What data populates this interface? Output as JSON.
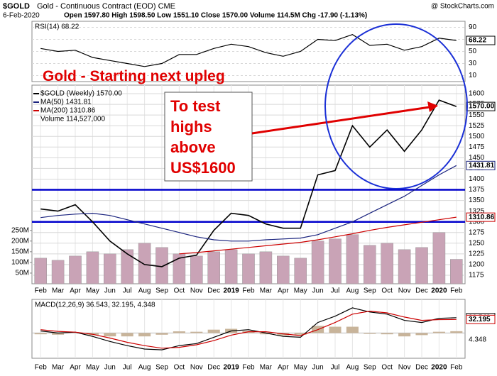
{
  "header": {
    "symbol": "$GOLD",
    "name": "Gold - Continuous Contract (EOD) CME",
    "date": "6-Feb-2020",
    "quote": "Open 1597.80  High 1598.50  Low 1551.10  Close 1570.00  Volume 114.5M  Chg -17.90 (-1.13%)",
    "credit": "@ StockCharts.com"
  },
  "chart_data": [
    {
      "type": "line",
      "title": "RSI(14) 68.22",
      "ylim": [
        0,
        100
      ],
      "yticks": [
        10,
        30,
        50,
        70,
        90
      ],
      "grid": true,
      "series": [
        {
          "color": "#000000",
          "tag": "68.22",
          "values": [
            55,
            50,
            52,
            40,
            35,
            30,
            25,
            30,
            45,
            45,
            55,
            62,
            58,
            48,
            42,
            50,
            70,
            68,
            78,
            60,
            62,
            52,
            58,
            72,
            68.22
          ]
        }
      ]
    },
    {
      "type": "line",
      "annotations": [
        "Gold -  Starting next upleg"
      ],
      "callout": [
        "To test",
        "highs",
        "above",
        "US$1600"
      ],
      "categories": [
        "Feb",
        "Mar",
        "Apr",
        "May",
        "Jun",
        "Jul",
        "Aug",
        "Sep",
        "Oct",
        "Nov",
        "Dec",
        "2019",
        "Feb",
        "Mar",
        "Apr",
        "May",
        "Jun",
        "Jul",
        "Aug",
        "Sep",
        "Oct",
        "Nov",
        "Dec",
        "2020",
        "Feb"
      ],
      "ylim": [
        1155,
        1620
      ],
      "yticks": [
        1175,
        1200,
        1225,
        1250,
        1275,
        1300,
        1325,
        1350,
        1375,
        1400,
        1425,
        1450,
        1475,
        1500,
        1525,
        1550,
        1575,
        1600
      ],
      "grid": true,
      "hlines": [
        1375,
        1300
      ],
      "hline_color": "#0000cc",
      "series": [
        {
          "name": "$GOLD (Weekly) 1570.00",
          "color": "#000000",
          "tag": "1570.00",
          "values": [
            1330,
            1325,
            1340,
            1300,
            1255,
            1225,
            1200,
            1195,
            1215,
            1222,
            1280,
            1320,
            1315,
            1295,
            1285,
            1285,
            1410,
            1420,
            1525,
            1475,
            1515,
            1465,
            1515,
            1585,
            1570
          ]
        },
        {
          "name": "MA(50) 1431.81",
          "color": "#1a237e",
          "tag": "1431.81",
          "values": [
            1310,
            1315,
            1318,
            1320,
            1315,
            1305,
            1295,
            1285,
            1275,
            1265,
            1258,
            1255,
            1255,
            1258,
            1260,
            1262,
            1270,
            1285,
            1300,
            1320,
            1340,
            1360,
            1385,
            1410,
            1431.81
          ]
        },
        {
          "name": "MA(200) 1310.86",
          "color": "#cc0000",
          "tag": "1310.86",
          "values": [
            null,
            null,
            null,
            null,
            null,
            null,
            null,
            null,
            1225,
            1228,
            1232,
            1236,
            1240,
            1244,
            1248,
            1252,
            1258,
            1265,
            1272,
            1280,
            1287,
            1293,
            1299,
            1305,
            1310.86
          ]
        }
      ],
      "volume": {
        "name": "Volume 114,527,000",
        "color": "#c9a3b6",
        "ylim": [
          0,
          930000000
        ],
        "yticks": [
          {
            "value": 50000000,
            "label": "50M"
          },
          {
            "value": 100000000,
            "label": "100M"
          },
          {
            "value": 150000000,
            "label": "150M"
          },
          {
            "value": 200000000,
            "label": "200M"
          },
          {
            "value": 250000000,
            "label": "250M"
          }
        ],
        "values": [
          120000000,
          110000000,
          130000000,
          150000000,
          140000000,
          160000000,
          190000000,
          170000000,
          140000000,
          130000000,
          150000000,
          160000000,
          140000000,
          150000000,
          130000000,
          120000000,
          200000000,
          210000000,
          230000000,
          180000000,
          190000000,
          160000000,
          170000000,
          240000000,
          114527000
        ]
      }
    },
    {
      "type": "line",
      "title": "MACD(12,26,9) 36.543, 32.195, 4.348",
      "ylim": [
        -60,
        80
      ],
      "series": [
        {
          "color": "#000000",
          "tag": "36.543",
          "values": [
            5,
            0,
            2,
            -8,
            -20,
            -30,
            -38,
            -40,
            -30,
            -25,
            -10,
            5,
            8,
            0,
            -8,
            -10,
            25,
            40,
            60,
            50,
            45,
            30,
            25,
            35,
            36.543
          ]
        },
        {
          "color": "#cc0000",
          "tag": "32.195",
          "values": [
            8,
            4,
            2,
            -3,
            -12,
            -22,
            -30,
            -36,
            -34,
            -28,
            -18,
            -5,
            3,
            3,
            -2,
            -6,
            8,
            25,
            45,
            52,
            48,
            38,
            30,
            32,
            32.195
          ]
        }
      ],
      "histogram": {
        "color": "#c8b49a",
        "tag": "4.348",
        "values": [
          -3,
          -4,
          0,
          -5,
          -8,
          -8,
          -8,
          -4,
          4,
          3,
          8,
          10,
          5,
          -3,
          -6,
          -4,
          17,
          15,
          15,
          -2,
          -3,
          -8,
          -5,
          3,
          4.348
        ]
      }
    }
  ]
}
